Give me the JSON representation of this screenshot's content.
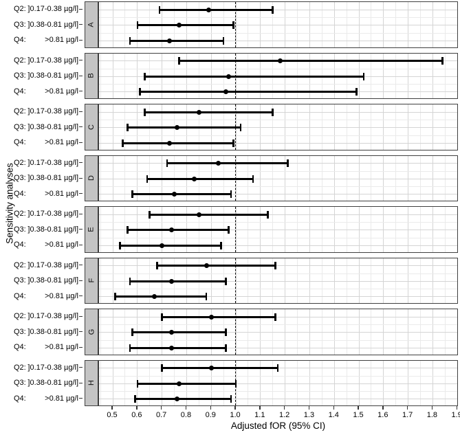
{
  "chart_data": {
    "type": "scatter",
    "subtype": "forest-plot-faceted",
    "title": "",
    "xlabel": "Adjusted fOR (95% CI)",
    "ylabel": "Sensitivity analyses",
    "xlim": [
      0.444,
      1.905
    ],
    "x_ticks": [
      0.5,
      0.6,
      0.7,
      0.8,
      0.9,
      1.0,
      1.1,
      1.2,
      1.3,
      1.4,
      1.5,
      1.6,
      1.7,
      1.8,
      1.9
    ],
    "reference_line_x": 1.0,
    "grid": true,
    "row_labels": [
      {
        "prefix": "Q2:",
        "range": "]0.17-0.38 µg/l]"
      },
      {
        "prefix": "Q3:",
        "range": "]0.38-0.81 µg/l]"
      },
      {
        "prefix": "Q4:",
        "range": ">0.81 µg/l"
      }
    ],
    "panels": [
      {
        "label": "A",
        "rows": [
          {
            "quartile": "Q2",
            "or": 0.89,
            "ci_low": 0.69,
            "ci_high": 1.15
          },
          {
            "quartile": "Q3",
            "or": 0.77,
            "ci_low": 0.6,
            "ci_high": 0.99
          },
          {
            "quartile": "Q4",
            "or": 0.73,
            "ci_low": 0.57,
            "ci_high": 0.95
          }
        ]
      },
      {
        "label": "B",
        "rows": [
          {
            "quartile": "Q2",
            "or": 1.18,
            "ci_low": 0.77,
            "ci_high": 1.84
          },
          {
            "quartile": "Q3",
            "or": 0.97,
            "ci_low": 0.63,
            "ci_high": 1.52
          },
          {
            "quartile": "Q4",
            "or": 0.96,
            "ci_low": 0.61,
            "ci_high": 1.49
          }
        ]
      },
      {
        "label": "C",
        "rows": [
          {
            "quartile": "Q2",
            "or": 0.85,
            "ci_low": 0.63,
            "ci_high": 1.15
          },
          {
            "quartile": "Q3",
            "or": 0.76,
            "ci_low": 0.56,
            "ci_high": 1.02
          },
          {
            "quartile": "Q4",
            "or": 0.73,
            "ci_low": 0.54,
            "ci_high": 0.99
          }
        ]
      },
      {
        "label": "D",
        "rows": [
          {
            "quartile": "Q2",
            "or": 0.93,
            "ci_low": 0.72,
            "ci_high": 1.21
          },
          {
            "quartile": "Q3",
            "or": 0.83,
            "ci_low": 0.64,
            "ci_high": 1.07
          },
          {
            "quartile": "Q4",
            "or": 0.75,
            "ci_low": 0.58,
            "ci_high": 0.98
          }
        ]
      },
      {
        "label": "E",
        "rows": [
          {
            "quartile": "Q2",
            "or": 0.85,
            "ci_low": 0.65,
            "ci_high": 1.13
          },
          {
            "quartile": "Q3",
            "or": 0.74,
            "ci_low": 0.56,
            "ci_high": 0.97
          },
          {
            "quartile": "Q4",
            "or": 0.7,
            "ci_low": 0.53,
            "ci_high": 0.94
          }
        ]
      },
      {
        "label": "F",
        "rows": [
          {
            "quartile": "Q2",
            "or": 0.88,
            "ci_low": 0.68,
            "ci_high": 1.16
          },
          {
            "quartile": "Q3",
            "or": 0.74,
            "ci_low": 0.57,
            "ci_high": 0.96
          },
          {
            "quartile": "Q4",
            "or": 0.67,
            "ci_low": 0.51,
            "ci_high": 0.88
          }
        ]
      },
      {
        "label": "G",
        "rows": [
          {
            "quartile": "Q2",
            "or": 0.9,
            "ci_low": 0.7,
            "ci_high": 1.16
          },
          {
            "quartile": "Q3",
            "or": 0.74,
            "ci_low": 0.58,
            "ci_high": 0.96
          },
          {
            "quartile": "Q4",
            "or": 0.74,
            "ci_low": 0.57,
            "ci_high": 0.96
          }
        ]
      },
      {
        "label": "H",
        "rows": [
          {
            "quartile": "Q2",
            "or": 0.9,
            "ci_low": 0.7,
            "ci_high": 1.17
          },
          {
            "quartile": "Q3",
            "or": 0.77,
            "ci_low": 0.6,
            "ci_high": 1.0
          },
          {
            "quartile": "Q4",
            "or": 0.76,
            "ci_low": 0.59,
            "ci_high": 0.98
          }
        ]
      }
    ]
  }
}
